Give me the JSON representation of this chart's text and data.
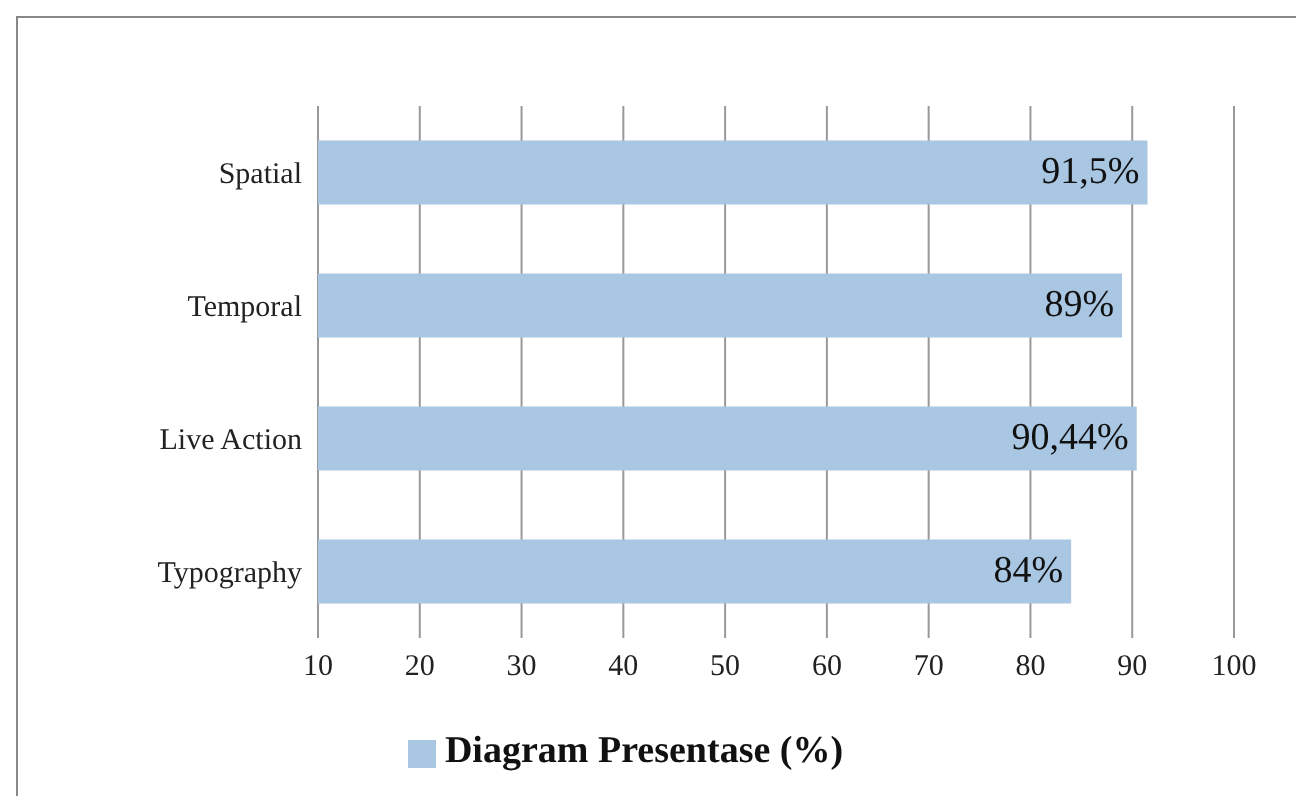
{
  "chart_data": {
    "type": "bar",
    "orientation": "horizontal",
    "categories": [
      "Spatial",
      "Temporal",
      "Live Action",
      "Typography"
    ],
    "series": [
      {
        "name": "Diagram Presentase (%)",
        "color": "#a9c6e2",
        "values": [
          91.5,
          89,
          90.44,
          84
        ],
        "value_labels": [
          "91,5%",
          "89%",
          "90,44%",
          "84%"
        ]
      }
    ],
    "xlim": [
      10,
      100
    ],
    "xticks": [
      10,
      20,
      30,
      40,
      50,
      60,
      70,
      80,
      90,
      100
    ],
    "grid": "x",
    "legend": "bottom"
  }
}
